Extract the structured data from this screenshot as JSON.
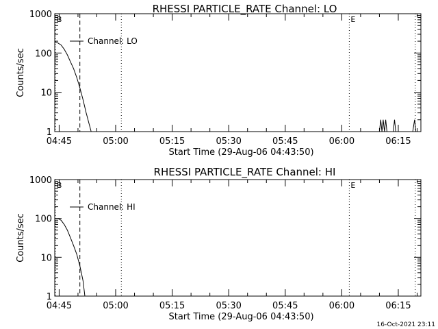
{
  "chart_data": [
    {
      "type": "line",
      "title": "RHESSI PARTICLE_RATE Channel: LO",
      "xlabel": "Start Time (29-Aug-06 04:43:50)",
      "ylabel": "Counts/sec",
      "yscale": "log",
      "ylim": [
        1,
        1000
      ],
      "xlim": [
        "04:43:50",
        "06:21:00"
      ],
      "x_ticks": [
        "04:45",
        "05:00",
        "05:15",
        "05:30",
        "05:45",
        "06:00",
        "06:15"
      ],
      "y_ticks": [
        "1",
        "10",
        "100",
        "1000"
      ],
      "legend": {
        "label": "Channel: LO",
        "position": "top-left"
      },
      "markers": [
        {
          "label": "B",
          "time": "04:44:00",
          "style": "dotted"
        },
        {
          "label": "",
          "time": "04:50:30",
          "style": "dashed"
        },
        {
          "label": "",
          "time": "05:01:30",
          "style": "dotted"
        },
        {
          "label": "E",
          "time": "06:02:00",
          "style": "dotted"
        },
        {
          "label": "",
          "time": "06:19:30",
          "style": "dotted"
        }
      ],
      "series": [
        {
          "name": "Channel: LO",
          "points": [
            [
              "04:43:50",
              190
            ],
            [
              "04:44:40",
              180
            ],
            [
              "04:45:30",
              160
            ],
            [
              "04:46:20",
              125
            ],
            [
              "04:47:10",
              90
            ],
            [
              "04:48:00",
              60
            ],
            [
              "04:48:50",
              40
            ],
            [
              "04:49:40",
              24
            ],
            [
              "04:50:30",
              13
            ],
            [
              "04:51:20",
              6.5
            ],
            [
              "04:52:10",
              3
            ],
            [
              "04:53:00",
              1.5
            ],
            [
              "04:53:30",
              1
            ]
          ]
        },
        {
          "name": "Channel: LO",
          "points": [
            [
              "06:10:00",
              1
            ],
            [
              "06:10:20",
              2
            ],
            [
              "06:10:40",
              1
            ],
            [
              "06:11:00",
              2
            ],
            [
              "06:11:20",
              1
            ],
            [
              "06:11:40",
              2
            ],
            [
              "06:12:00",
              1
            ]
          ]
        },
        {
          "name": "Channel: LO",
          "points": [
            [
              "06:13:40",
              1
            ],
            [
              "06:14:00",
              2
            ],
            [
              "06:14:20",
              1
            ]
          ]
        },
        {
          "name": "Channel: LO",
          "points": [
            [
              "06:18:50",
              1
            ],
            [
              "06:19:20",
              2
            ],
            [
              "06:19:40",
              1
            ]
          ]
        }
      ]
    },
    {
      "type": "line",
      "title": "RHESSI PARTICLE_RATE Channel: HI",
      "xlabel": "Start Time (29-Aug-06 04:43:50)",
      "ylabel": "Counts/sec",
      "yscale": "log",
      "ylim": [
        1,
        1000
      ],
      "xlim": [
        "04:43:50",
        "06:21:00"
      ],
      "x_ticks": [
        "04:45",
        "05:00",
        "05:15",
        "05:30",
        "05:45",
        "06:00",
        "06:15"
      ],
      "y_ticks": [
        "1",
        "10",
        "100",
        "1000"
      ],
      "legend": {
        "label": "Channel: HI",
        "position": "top-left"
      },
      "markers": [
        {
          "label": "B",
          "time": "04:44:00",
          "style": "dotted"
        },
        {
          "label": "",
          "time": "04:50:30",
          "style": "dashed"
        },
        {
          "label": "",
          "time": "05:01:30",
          "style": "dotted"
        },
        {
          "label": "E",
          "time": "06:02:00",
          "style": "dotted"
        },
        {
          "label": "",
          "time": "06:19:30",
          "style": "dotted"
        }
      ],
      "series": [
        {
          "name": "Channel: HI",
          "points": [
            [
              "04:43:50",
              100
            ],
            [
              "04:44:40",
              100
            ],
            [
              "04:45:30",
              90
            ],
            [
              "04:46:20",
              70
            ],
            [
              "04:47:10",
              50
            ],
            [
              "04:48:00",
              32
            ],
            [
              "04:48:50",
              20
            ],
            [
              "04:49:40",
              12
            ],
            [
              "04:50:30",
              6
            ],
            [
              "04:51:20",
              2.5
            ],
            [
              "04:51:50",
              1
            ]
          ]
        }
      ]
    }
  ],
  "footer": {
    "timestamp": "16-Oct-2021 23:11"
  }
}
